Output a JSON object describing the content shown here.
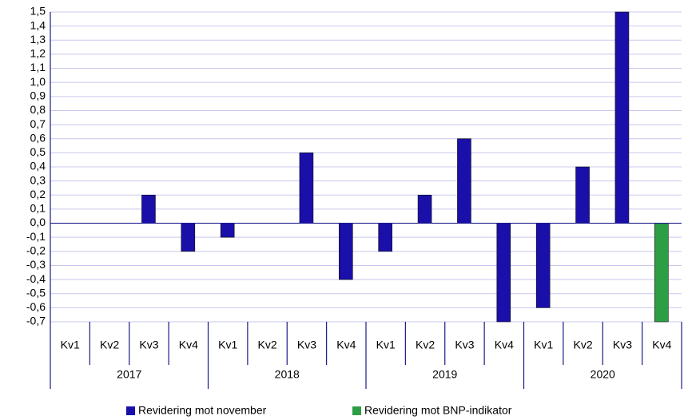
{
  "chart_data": {
    "type": "bar",
    "categories": [
      "Kv1",
      "Kv2",
      "Kv3",
      "Kv4",
      "Kv1",
      "Kv2",
      "Kv3",
      "Kv4",
      "Kv1",
      "Kv2",
      "Kv3",
      "Kv4",
      "Kv1",
      "Kv2",
      "Kv3",
      "Kv4"
    ],
    "years": [
      "2017",
      "2018",
      "2019",
      "2020"
    ],
    "series": [
      {
        "name": "Revidering mot november",
        "color": "#1a0fa8",
        "values": [
          0,
          0,
          0.2,
          -0.2,
          -0.1,
          0,
          0.5,
          -0.4,
          -0.2,
          0.2,
          0.6,
          -0.7,
          -0.6,
          0.4,
          1.5,
          null
        ]
      },
      {
        "name": "Revidering mot BNP-indikator",
        "color": "#2e9e45",
        "values": [
          null,
          null,
          null,
          null,
          null,
          null,
          null,
          null,
          null,
          null,
          null,
          null,
          null,
          null,
          null,
          -0.7
        ]
      }
    ],
    "ylim": [
      -0.7,
      1.5
    ],
    "yticks": [
      {
        "value": -0.7,
        "label": "-0,7"
      },
      {
        "value": -0.6,
        "label": "-0,6"
      },
      {
        "value": -0.5,
        "label": "-0,5"
      },
      {
        "value": -0.4,
        "label": "-0,4"
      },
      {
        "value": -0.3,
        "label": "-0,3"
      },
      {
        "value": -0.2,
        "label": "-0,2"
      },
      {
        "value": -0.1,
        "label": "-0,1"
      },
      {
        "value": 0,
        "label": "0,0"
      },
      {
        "value": 0.1,
        "label": "0,1"
      },
      {
        "value": 0.2,
        "label": "0,2"
      },
      {
        "value": 0.3,
        "label": "0,3"
      },
      {
        "value": 0.4,
        "label": "0,4"
      },
      {
        "value": 0.5,
        "label": "0,5"
      },
      {
        "value": 0.6,
        "label": "0,6"
      },
      {
        "value": 0.7,
        "label": "0,7"
      },
      {
        "value": 0.8,
        "label": "0,8"
      },
      {
        "value": 0.9,
        "label": "0,9"
      },
      {
        "value": 1.0,
        "label": "1,0"
      },
      {
        "value": 1.1,
        "label": "1,1"
      },
      {
        "value": 1.2,
        "label": "1,2"
      },
      {
        "value": 1.3,
        "label": "1,3"
      },
      {
        "value": 1.4,
        "label": "1,4"
      },
      {
        "value": 1.5,
        "label": "1,5"
      }
    ],
    "grid": true,
    "legend": "bottom"
  }
}
